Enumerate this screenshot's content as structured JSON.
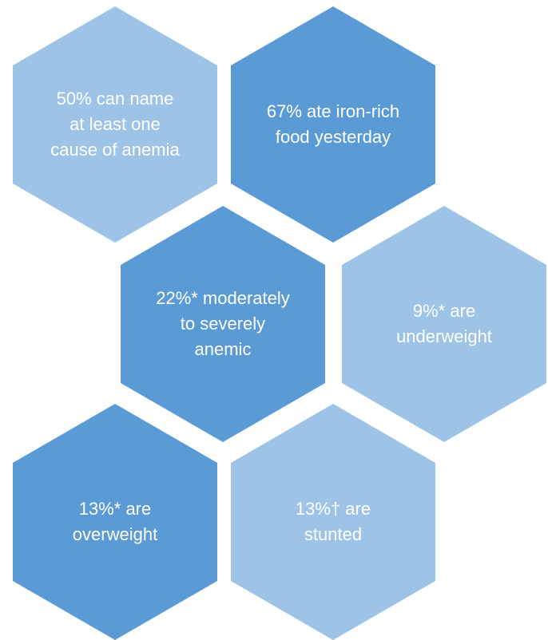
{
  "hexagons": [
    {
      "text": "50% can name at least one cause of anemia",
      "shade": "light"
    },
    {
      "text": "67% ate iron-rich food yesterday",
      "shade": "dark"
    },
    {
      "text": "22%* moderately to severely anemic",
      "shade": "dark"
    },
    {
      "text": "9%* are underweight",
      "shade": "light"
    },
    {
      "text": "13%* are overweight",
      "shade": "dark"
    },
    {
      "text": "13%† are stunted",
      "shade": "light"
    }
  ],
  "colors": {
    "light_hex": "#9dc3e6",
    "dark_hex": "#5b9bd5",
    "text": "#ffffff"
  }
}
